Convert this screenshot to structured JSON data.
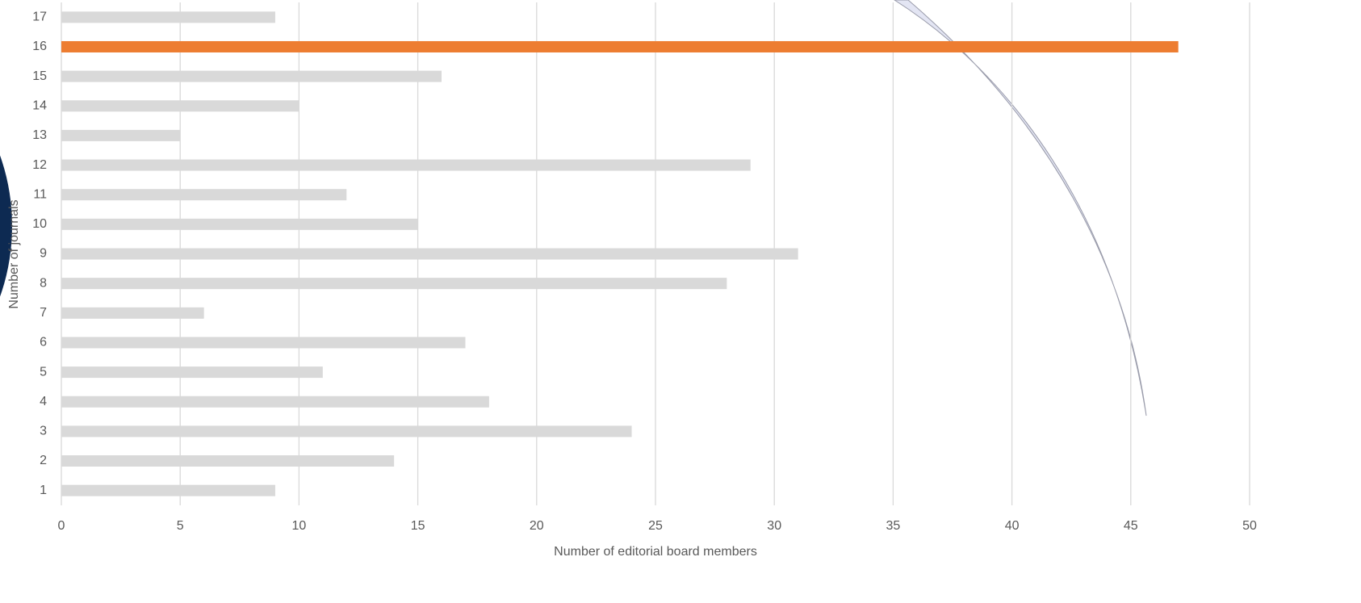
{
  "chart_data": {
    "type": "barh",
    "x_label": "Number of editorial board members",
    "y_label": "Number of journals",
    "categories": [
      "1",
      "2",
      "3",
      "4",
      "5",
      "6",
      "7",
      "8",
      "9",
      "10",
      "11",
      "12",
      "13",
      "14",
      "15",
      "16",
      "17"
    ],
    "values": [
      9,
      14,
      24,
      18,
      11,
      17,
      6,
      28,
      31,
      15,
      12,
      29,
      5,
      10,
      16,
      47,
      9
    ],
    "colors": [
      "#d9d9d9",
      "#d9d9d9",
      "#d9d9d9",
      "#d9d9d9",
      "#d9d9d9",
      "#d9d9d9",
      "#d9d9d9",
      "#d9d9d9",
      "#d9d9d9",
      "#d9d9d9",
      "#d9d9d9",
      "#d9d9d9",
      "#d9d9d9",
      "#d9d9d9",
      "#d9d9d9",
      "#ed7d31",
      "#d9d9d9"
    ],
    "xlim": [
      0,
      50
    ],
    "xticks": [
      0,
      5,
      10,
      15,
      20,
      25,
      30,
      35,
      40,
      45,
      50
    ],
    "grid": true
  }
}
